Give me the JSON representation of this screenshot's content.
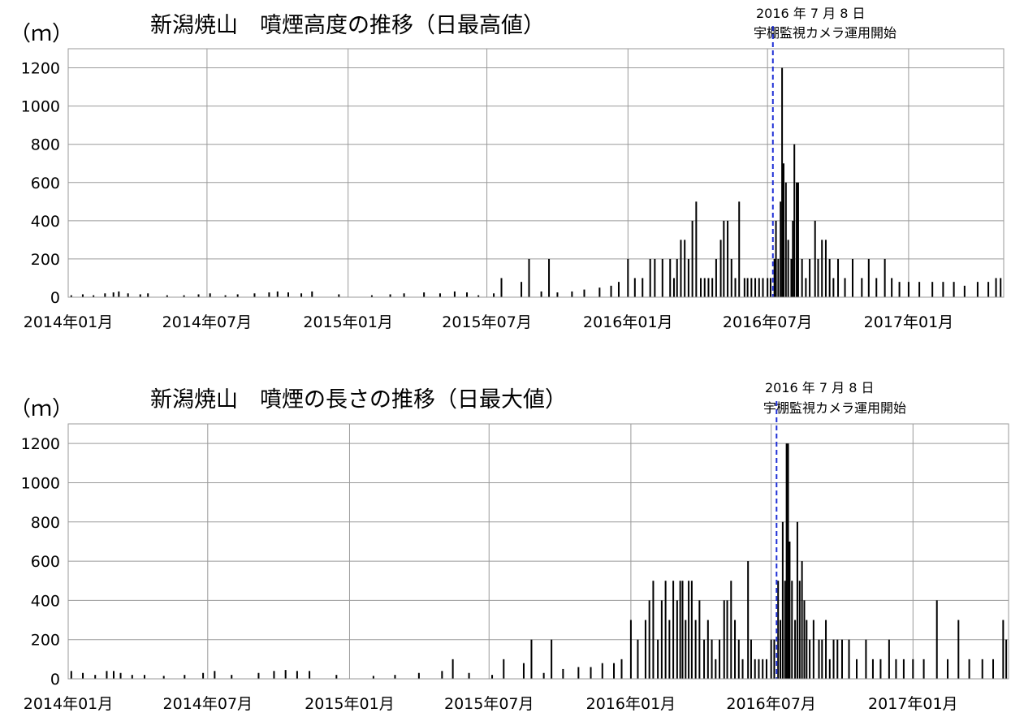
{
  "chart_data": [
    {
      "type": "bar",
      "title": "新潟焼山　噴煙高度の推移（日最高値）",
      "ylabel": "（ｍ）",
      "ylim": [
        0,
        1300
      ],
      "y_ticks": [
        "0",
        "200",
        "400",
        "600",
        "800",
        "1000",
        "1200"
      ],
      "x_range": [
        "2014-01-01",
        "2017-05-05"
      ],
      "x_ticks": [
        {
          "date": "2014-01-01",
          "label": "2014年01月"
        },
        {
          "date": "2014-07-01",
          "label": "2014年07月"
        },
        {
          "date": "2015-01-01",
          "label": "2015年01月"
        },
        {
          "date": "2015-07-01",
          "label": "2015年07月"
        },
        {
          "date": "2016-01-01",
          "label": "2016年01月"
        },
        {
          "date": "2016-07-01",
          "label": "2016年07月"
        },
        {
          "date": "2017-01-01",
          "label": "2017年01月"
        }
      ],
      "grid": true,
      "annotation": {
        "date": "2016-07-08",
        "line1": "2016 年 7 月 8 日",
        "line2": "宇棚監視カメラ運用開始"
      },
      "points": [
        [
          "2014-01-05",
          10
        ],
        [
          "2014-01-20",
          15
        ],
        [
          "2014-02-03",
          10
        ],
        [
          "2014-02-18",
          20
        ],
        [
          "2014-03-01",
          25
        ],
        [
          "2014-03-08",
          30
        ],
        [
          "2014-03-20",
          20
        ],
        [
          "2014-04-05",
          15
        ],
        [
          "2014-04-15",
          20
        ],
        [
          "2014-05-10",
          10
        ],
        [
          "2014-06-01",
          10
        ],
        [
          "2014-06-20",
          15
        ],
        [
          "2014-07-05",
          20
        ],
        [
          "2014-07-25",
          10
        ],
        [
          "2014-08-10",
          15
        ],
        [
          "2014-09-01",
          20
        ],
        [
          "2014-09-20",
          25
        ],
        [
          "2014-10-01",
          30
        ],
        [
          "2014-10-15",
          25
        ],
        [
          "2014-11-01",
          20
        ],
        [
          "2014-11-15",
          30
        ],
        [
          "2014-12-20",
          15
        ],
        [
          "2015-02-01",
          10
        ],
        [
          "2015-02-25",
          15
        ],
        [
          "2015-03-15",
          20
        ],
        [
          "2015-04-10",
          25
        ],
        [
          "2015-05-01",
          20
        ],
        [
          "2015-05-20",
          30
        ],
        [
          "2015-06-05",
          25
        ],
        [
          "2015-06-20",
          10
        ],
        [
          "2015-07-10",
          20
        ],
        [
          "2015-07-20",
          100
        ],
        [
          "2015-08-15",
          80
        ],
        [
          "2015-08-25",
          200
        ],
        [
          "2015-09-10",
          30
        ],
        [
          "2015-09-20",
          200
        ],
        [
          "2015-10-01",
          25
        ],
        [
          "2015-10-20",
          30
        ],
        [
          "2015-11-05",
          40
        ],
        [
          "2015-11-25",
          50
        ],
        [
          "2015-12-10",
          60
        ],
        [
          "2015-12-20",
          80
        ],
        [
          "2016-01-01",
          200
        ],
        [
          "2016-01-10",
          100
        ],
        [
          "2016-01-20",
          100
        ],
        [
          "2016-01-30",
          200
        ],
        [
          "2016-02-05",
          200
        ],
        [
          "2016-02-15",
          200
        ],
        [
          "2016-02-25",
          200
        ],
        [
          "2016-03-01",
          100
        ],
        [
          "2016-03-05",
          200
        ],
        [
          "2016-03-10",
          300
        ],
        [
          "2016-03-15",
          300
        ],
        [
          "2016-03-20",
          200
        ],
        [
          "2016-03-25",
          400
        ],
        [
          "2016-03-30",
          500
        ],
        [
          "2016-04-05",
          100
        ],
        [
          "2016-04-10",
          100
        ],
        [
          "2016-04-15",
          100
        ],
        [
          "2016-04-20",
          100
        ],
        [
          "2016-04-25",
          200
        ],
        [
          "2016-05-01",
          300
        ],
        [
          "2016-05-05",
          400
        ],
        [
          "2016-05-10",
          400
        ],
        [
          "2016-05-15",
          200
        ],
        [
          "2016-05-20",
          100
        ],
        [
          "2016-05-25",
          500
        ],
        [
          "2016-06-01",
          100
        ],
        [
          "2016-06-05",
          100
        ],
        [
          "2016-06-10",
          100
        ],
        [
          "2016-06-15",
          100
        ],
        [
          "2016-06-20",
          100
        ],
        [
          "2016-06-25",
          100
        ],
        [
          "2016-07-01",
          100
        ],
        [
          "2016-07-05",
          100
        ],
        [
          "2016-07-10",
          200
        ],
        [
          "2016-07-12",
          400
        ],
        [
          "2016-07-15",
          200
        ],
        [
          "2016-07-18",
          500
        ],
        [
          "2016-07-20",
          1200
        ],
        [
          "2016-07-22",
          700
        ],
        [
          "2016-07-25",
          600
        ],
        [
          "2016-07-28",
          300
        ],
        [
          "2016-08-01",
          200
        ],
        [
          "2016-08-03",
          400
        ],
        [
          "2016-08-05",
          800
        ],
        [
          "2016-08-08",
          600
        ],
        [
          "2016-08-10",
          600
        ],
        [
          "2016-08-15",
          200
        ],
        [
          "2016-08-20",
          100
        ],
        [
          "2016-08-25",
          200
        ],
        [
          "2016-09-01",
          400
        ],
        [
          "2016-09-05",
          200
        ],
        [
          "2016-09-10",
          300
        ],
        [
          "2016-09-15",
          300
        ],
        [
          "2016-09-20",
          200
        ],
        [
          "2016-09-25",
          100
        ],
        [
          "2016-10-01",
          200
        ],
        [
          "2016-10-10",
          100
        ],
        [
          "2016-10-20",
          200
        ],
        [
          "2016-11-01",
          100
        ],
        [
          "2016-11-10",
          200
        ],
        [
          "2016-11-20",
          100
        ],
        [
          "2016-12-01",
          200
        ],
        [
          "2016-12-10",
          100
        ],
        [
          "2016-12-20",
          80
        ],
        [
          "2017-01-01",
          80
        ],
        [
          "2017-01-15",
          80
        ],
        [
          "2017-02-01",
          80
        ],
        [
          "2017-02-15",
          80
        ],
        [
          "2017-03-01",
          80
        ],
        [
          "2017-03-15",
          60
        ],
        [
          "2017-04-01",
          80
        ],
        [
          "2017-04-15",
          80
        ],
        [
          "2017-04-25",
          100
        ],
        [
          "2017-05-01",
          100
        ]
      ]
    },
    {
      "type": "bar",
      "title": "新潟焼山　噴煙の長さの推移（日最大値）",
      "ylabel": "（ｍ）",
      "ylim": [
        0,
        1300
      ],
      "y_ticks": [
        "0",
        "200",
        "400",
        "600",
        "800",
        "1000",
        "1200"
      ],
      "x_range": [
        "2014-01-01",
        "2017-05-05"
      ],
      "x_ticks": [
        {
          "date": "2014-01-01",
          "label": "2014年01月"
        },
        {
          "date": "2014-07-01",
          "label": "2014年07月"
        },
        {
          "date": "2015-01-01",
          "label": "2015年01月"
        },
        {
          "date": "2015-07-01",
          "label": "2015年07月"
        },
        {
          "date": "2016-01-01",
          "label": "2016年01月"
        },
        {
          "date": "2016-07-01",
          "label": "2016年07月"
        },
        {
          "date": "2017-01-01",
          "label": "2017年01月"
        }
      ],
      "grid": true,
      "annotation": {
        "date": "2016-07-08",
        "line1": "2016 年 7 月 8 日",
        "line2": "宇棚監視カメラ運用開始"
      },
      "points": [
        [
          "2014-01-05",
          40
        ],
        [
          "2014-01-20",
          30
        ],
        [
          "2014-02-05",
          20
        ],
        [
          "2014-02-20",
          40
        ],
        [
          "2014-03-01",
          40
        ],
        [
          "2014-03-10",
          30
        ],
        [
          "2014-03-25",
          20
        ],
        [
          "2014-04-10",
          20
        ],
        [
          "2014-05-05",
          15
        ],
        [
          "2014-06-01",
          20
        ],
        [
          "2014-06-25",
          30
        ],
        [
          "2014-07-10",
          40
        ],
        [
          "2014-08-01",
          20
        ],
        [
          "2014-09-05",
          30
        ],
        [
          "2014-09-25",
          40
        ],
        [
          "2014-10-10",
          45
        ],
        [
          "2014-10-25",
          40
        ],
        [
          "2014-11-10",
          40
        ],
        [
          "2014-12-15",
          20
        ],
        [
          "2015-02-01",
          15
        ],
        [
          "2015-03-01",
          20
        ],
        [
          "2015-04-01",
          30
        ],
        [
          "2015-05-01",
          40
        ],
        [
          "2015-05-15",
          100
        ],
        [
          "2015-06-05",
          30
        ],
        [
          "2015-07-05",
          20
        ],
        [
          "2015-07-20",
          100
        ],
        [
          "2015-08-15",
          80
        ],
        [
          "2015-08-25",
          200
        ],
        [
          "2015-09-10",
          30
        ],
        [
          "2015-09-20",
          200
        ],
        [
          "2015-10-05",
          50
        ],
        [
          "2015-10-25",
          60
        ],
        [
          "2015-11-10",
          60
        ],
        [
          "2015-11-25",
          80
        ],
        [
          "2015-12-10",
          80
        ],
        [
          "2015-12-20",
          100
        ],
        [
          "2016-01-01",
          300
        ],
        [
          "2016-01-10",
          200
        ],
        [
          "2016-01-20",
          300
        ],
        [
          "2016-01-25",
          400
        ],
        [
          "2016-01-30",
          500
        ],
        [
          "2016-02-05",
          200
        ],
        [
          "2016-02-10",
          400
        ],
        [
          "2016-02-15",
          500
        ],
        [
          "2016-02-20",
          300
        ],
        [
          "2016-02-25",
          500
        ],
        [
          "2016-03-01",
          400
        ],
        [
          "2016-03-05",
          500
        ],
        [
          "2016-03-08",
          500
        ],
        [
          "2016-03-12",
          300
        ],
        [
          "2016-03-16",
          500
        ],
        [
          "2016-03-20",
          500
        ],
        [
          "2016-03-25",
          300
        ],
        [
          "2016-03-30",
          400
        ],
        [
          "2016-04-05",
          200
        ],
        [
          "2016-04-10",
          300
        ],
        [
          "2016-04-15",
          200
        ],
        [
          "2016-04-20",
          100
        ],
        [
          "2016-04-25",
          200
        ],
        [
          "2016-05-01",
          400
        ],
        [
          "2016-05-05",
          400
        ],
        [
          "2016-05-10",
          500
        ],
        [
          "2016-05-15",
          300
        ],
        [
          "2016-05-20",
          200
        ],
        [
          "2016-05-25",
          100
        ],
        [
          "2016-06-01",
          600
        ],
        [
          "2016-06-05",
          200
        ],
        [
          "2016-06-10",
          100
        ],
        [
          "2016-06-15",
          100
        ],
        [
          "2016-06-20",
          100
        ],
        [
          "2016-06-25",
          100
        ],
        [
          "2016-07-01",
          200
        ],
        [
          "2016-07-05",
          200
        ],
        [
          "2016-07-10",
          500
        ],
        [
          "2016-07-13",
          300
        ],
        [
          "2016-07-16",
          800
        ],
        [
          "2016-07-19",
          500
        ],
        [
          "2016-07-21",
          1200
        ],
        [
          "2016-07-23",
          1200
        ],
        [
          "2016-07-25",
          700
        ],
        [
          "2016-07-28",
          500
        ],
        [
          "2016-08-01",
          300
        ],
        [
          "2016-08-04",
          800
        ],
        [
          "2016-08-07",
          500
        ],
        [
          "2016-08-10",
          600
        ],
        [
          "2016-08-13",
          400
        ],
        [
          "2016-08-16",
          300
        ],
        [
          "2016-08-20",
          200
        ],
        [
          "2016-08-25",
          300
        ],
        [
          "2016-09-01",
          200
        ],
        [
          "2016-09-05",
          200
        ],
        [
          "2016-09-10",
          300
        ],
        [
          "2016-09-15",
          100
        ],
        [
          "2016-09-20",
          200
        ],
        [
          "2016-09-25",
          200
        ],
        [
          "2016-10-01",
          200
        ],
        [
          "2016-10-10",
          200
        ],
        [
          "2016-10-20",
          100
        ],
        [
          "2016-11-01",
          200
        ],
        [
          "2016-11-10",
          100
        ],
        [
          "2016-11-20",
          100
        ],
        [
          "2016-12-01",
          200
        ],
        [
          "2016-12-10",
          100
        ],
        [
          "2016-12-20",
          100
        ],
        [
          "2017-01-01",
          100
        ],
        [
          "2017-01-15",
          100
        ],
        [
          "2017-02-01",
          400
        ],
        [
          "2017-02-15",
          100
        ],
        [
          "2017-03-01",
          300
        ],
        [
          "2017-03-15",
          100
        ],
        [
          "2017-04-01",
          100
        ],
        [
          "2017-04-15",
          100
        ],
        [
          "2017-04-28",
          300
        ],
        [
          "2017-05-02",
          200
        ]
      ]
    }
  ]
}
